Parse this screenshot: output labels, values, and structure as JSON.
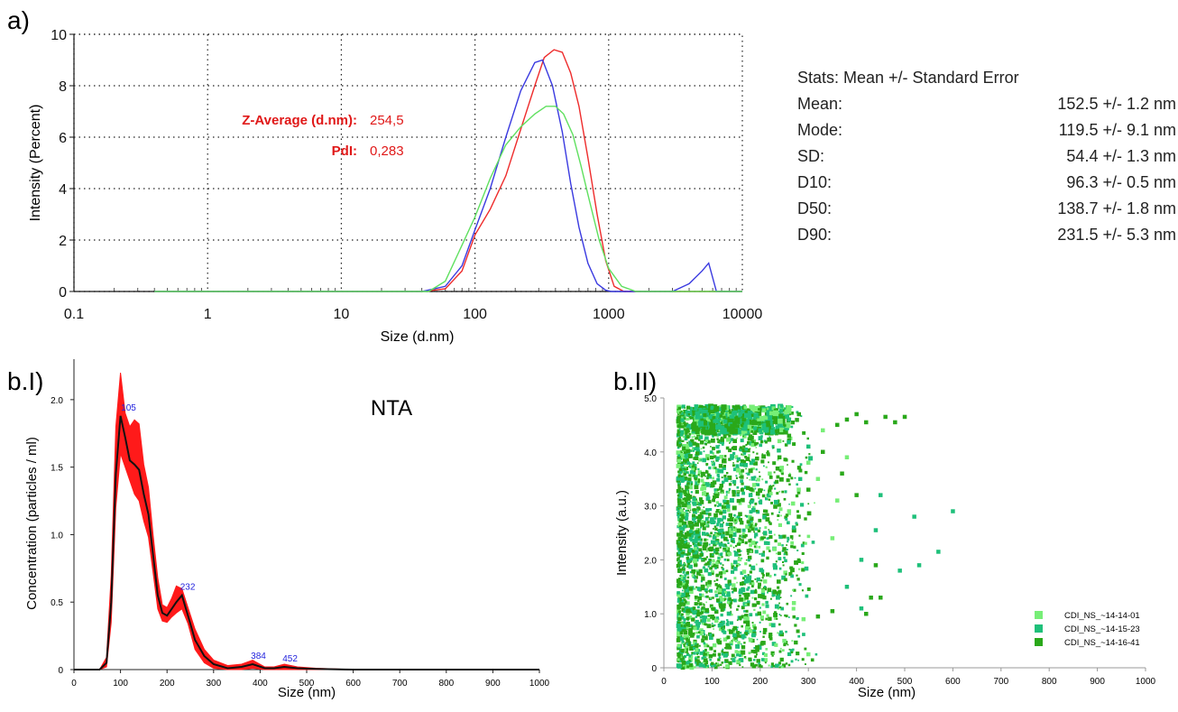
{
  "panel_a": {
    "label": "a)",
    "annotation": {
      "zavg_label": "Z-Average (d.nm):",
      "zavg_value": "254,5",
      "pdi_label": "PdI:",
      "pdi_value": "0,283"
    },
    "stats": {
      "title": "Stats: Mean +/- Standard Error",
      "rows": [
        {
          "label": "Mean:",
          "value": "152.5 +/- 1.2 nm"
        },
        {
          "label": "Mode:",
          "value": "119.5 +/- 9.1 nm"
        },
        {
          "label": "SD:",
          "value": "54.4 +/- 1.3 nm"
        },
        {
          "label": "D10:",
          "value": "96.3 +/- 0.5 nm"
        },
        {
          "label": "D50:",
          "value": "138.7 +/- 1.8 nm"
        },
        {
          "label": "D90:",
          "value": "231.5 +/- 5.3 nm"
        }
      ]
    }
  },
  "panel_b1": {
    "label": "b.I)",
    "overlay": "NTA"
  },
  "panel_b2": {
    "label": "b.II)"
  },
  "colors": {
    "red": "#ee2b2b",
    "blue": "#3a3ae0",
    "green": "#5fe05f",
    "annot": "#e01818",
    "nta_fill": "#ff1a1a",
    "nta_line": "#111111",
    "peak": "#2222dd",
    "s1": "#77ee77",
    "s2": "#1ec07a",
    "s3": "#2aa81a"
  },
  "chart_data": [
    {
      "type": "line",
      "xscale": "log",
      "xlabel": "Size (d.nm)",
      "ylabel": "Intensity (Percent)",
      "xlim": [
        0.1,
        10000
      ],
      "ylim": [
        0,
        10
      ],
      "xticks": [
        0.1,
        1,
        10,
        100,
        1000,
        10000
      ],
      "xtick_labels": [
        "0.1",
        "1",
        "10",
        "100",
        "1000",
        "10000"
      ],
      "yticks": [
        0,
        2,
        4,
        6,
        8,
        10
      ],
      "grid": true,
      "series": [
        {
          "color": "red",
          "x": [
            0.4,
            40,
            60,
            80,
            100,
            130,
            170,
            220,
            280,
            330,
            390,
            450,
            520,
            600,
            700,
            820,
            950,
            1100,
            1300,
            10000
          ],
          "y": [
            0,
            0,
            0.1,
            0.8,
            2.2,
            3.2,
            4.5,
            6.3,
            8.0,
            9.1,
            9.4,
            9.3,
            8.5,
            7.2,
            5.2,
            3.0,
            1.2,
            0.2,
            0,
            0
          ]
        },
        {
          "color": "blue",
          "x": [
            0.4,
            40,
            60,
            80,
            100,
            130,
            170,
            220,
            280,
            320,
            380,
            450,
            520,
            600,
            700,
            820,
            950,
            1050,
            2000,
            3000,
            4000,
            5000,
            5600,
            6400,
            10000
          ],
          "y": [
            0,
            0,
            0.2,
            1.0,
            2.4,
            4.0,
            6.0,
            7.8,
            8.9,
            9.0,
            8.0,
            6.2,
            4.2,
            2.5,
            1.1,
            0.3,
            0.05,
            0,
            0,
            0,
            0.3,
            0.8,
            1.1,
            0,
            0
          ]
        },
        {
          "color": "green",
          "x": [
            0.4,
            45,
            60,
            80,
            100,
            130,
            170,
            220,
            280,
            340,
            400,
            460,
            540,
            620,
            720,
            850,
            1000,
            1250,
            1600,
            10000
          ],
          "y": [
            0,
            0,
            0.4,
            1.8,
            2.9,
            4.4,
            5.7,
            6.4,
            6.9,
            7.2,
            7.2,
            6.9,
            6.1,
            4.9,
            3.5,
            2.0,
            0.9,
            0.2,
            0,
            0
          ]
        }
      ]
    },
    {
      "type": "area",
      "xlabel": "Size (nm)",
      "ylabel": "Concentration (particles / ml)",
      "xlim": [
        0,
        1000
      ],
      "ylim": [
        0,
        2.3
      ],
      "xticks": [
        0,
        100,
        200,
        300,
        400,
        500,
        600,
        700,
        800,
        900,
        1000
      ],
      "yticks": [
        0,
        0.5,
        1.0,
        1.5,
        2.0
      ],
      "ytick_labels": [
        "0",
        "0.5",
        "1.0",
        "1.5",
        "2.0"
      ],
      "grid": false,
      "mean_x": [
        0,
        55,
        70,
        80,
        90,
        100,
        110,
        120,
        130,
        140,
        150,
        160,
        170,
        180,
        190,
        200,
        210,
        220,
        232,
        245,
        260,
        280,
        300,
        330,
        360,
        384,
        410,
        430,
        452,
        480,
        520,
        600,
        1000
      ],
      "mean_y": [
        0,
        0,
        0.05,
        0.5,
        1.45,
        1.88,
        1.72,
        1.55,
        1.52,
        1.48,
        1.3,
        1.15,
        0.85,
        0.55,
        0.42,
        0.4,
        0.45,
        0.5,
        0.55,
        0.4,
        0.22,
        0.1,
        0.04,
        0.01,
        0.02,
        0.04,
        0.01,
        0.01,
        0.02,
        0.01,
        0.005,
        0,
        0
      ],
      "upper_y": [
        0,
        0,
        0.09,
        0.7,
        1.8,
        2.2,
        1.9,
        1.8,
        1.85,
        1.82,
        1.52,
        1.35,
        1.0,
        0.68,
        0.48,
        0.46,
        0.53,
        0.62,
        0.6,
        0.46,
        0.3,
        0.15,
        0.07,
        0.03,
        0.04,
        0.07,
        0.02,
        0.02,
        0.04,
        0.02,
        0.01,
        0,
        0
      ],
      "lower_y": [
        0,
        0,
        0.02,
        0.35,
        1.2,
        1.6,
        1.5,
        1.4,
        1.3,
        1.25,
        1.1,
        0.98,
        0.72,
        0.45,
        0.36,
        0.35,
        0.39,
        0.42,
        0.45,
        0.34,
        0.15,
        0.05,
        0.01,
        0,
        0,
        0.01,
        0,
        0,
        0,
        0,
        0,
        0,
        0
      ],
      "peaks": [
        {
          "x": 105,
          "y": 1.88,
          "label": "105"
        },
        {
          "x": 232,
          "y": 0.55,
          "label": "232"
        },
        {
          "x": 384,
          "y": 0.04,
          "label": "384"
        },
        {
          "x": 452,
          "y": 0.02,
          "label": "452"
        }
      ]
    },
    {
      "type": "scatter",
      "xlabel": "Size (nm)",
      "ylabel": "Intensity (a.u.)",
      "xlim": [
        0,
        1000
      ],
      "ylim": [
        0,
        5.0
      ],
      "xticks": [
        0,
        100,
        200,
        300,
        400,
        500,
        600,
        700,
        800,
        900,
        1000
      ],
      "yticks": [
        0,
        1.0,
        2.0,
        3.0,
        4.0,
        5.0
      ],
      "ytick_labels": [
        "0",
        "1.0",
        "2.0",
        "3.0",
        "4.0",
        "5.0"
      ],
      "legend_position": "bottom-right",
      "series": [
        {
          "name": "CDI_NS_~14-14-01",
          "color": "s1",
          "points": [
            [
              300,
              3.8
            ],
            [
              320,
              3.5
            ],
            [
              280,
              3.3
            ],
            [
              260,
              2.9
            ],
            [
              350,
              2.4
            ],
            [
              380,
              3.9
            ],
            [
              240,
              4.2
            ],
            [
              330,
              4.4
            ],
            [
              210,
              1.6
            ],
            [
              270,
              1.2
            ],
            [
              290,
              0.9
            ],
            [
              230,
              2.2
            ],
            [
              360,
              3.1
            ],
            [
              250,
              0.5
            ],
            [
              300,
              0.25
            ],
            [
              220,
              3.6
            ]
          ]
        },
        {
          "name": "CDI_NS_~14-15-23",
          "color": "s2",
          "points": [
            [
              600,
              2.9
            ],
            [
              570,
              2.15
            ],
            [
              530,
              1.9
            ],
            [
              440,
              2.55
            ],
            [
              410,
              2.0
            ],
            [
              520,
              2.8
            ],
            [
              490,
              1.8
            ],
            [
              410,
              1.1
            ],
            [
              450,
              3.2
            ],
            [
              380,
              1.5
            ],
            [
              230,
              1.9
            ],
            [
              270,
              2.6
            ],
            [
              180,
              3.2
            ],
            [
              150,
              2.1
            ],
            [
              200,
              4.4
            ],
            [
              260,
              4.6
            ],
            [
              300,
              4.1
            ],
            [
              120,
              0.8
            ],
            [
              160,
              1.4
            ],
            [
              210,
              2.5
            ]
          ]
        },
        {
          "name": "CDI_NS_~14-16-41",
          "color": "s3",
          "points": [
            [
              500,
              4.65
            ],
            [
              480,
              4.55
            ],
            [
              460,
              4.65
            ],
            [
              420,
              4.55
            ],
            [
              400,
              4.7
            ],
            [
              380,
              4.6
            ],
            [
              360,
              4.5
            ],
            [
              430,
              1.3
            ],
            [
              450,
              1.3
            ],
            [
              420,
              1.0
            ],
            [
              350,
              1.05
            ],
            [
              320,
              0.95
            ],
            [
              440,
              1.9
            ],
            [
              400,
              3.2
            ],
            [
              370,
              3.6
            ],
            [
              300,
              3.3
            ],
            [
              280,
              2.8
            ],
            [
              250,
              2.2
            ],
            [
              230,
              1.4
            ],
            [
              210,
              0.7
            ],
            [
              190,
              0.3
            ],
            [
              260,
              4.3
            ],
            [
              330,
              4.0
            ],
            [
              240,
              3.9
            ]
          ]
        }
      ],
      "dense_cloud": {
        "x_range": [
          30,
          320
        ],
        "y_range": [
          0,
          4.85
        ]
      }
    }
  ]
}
